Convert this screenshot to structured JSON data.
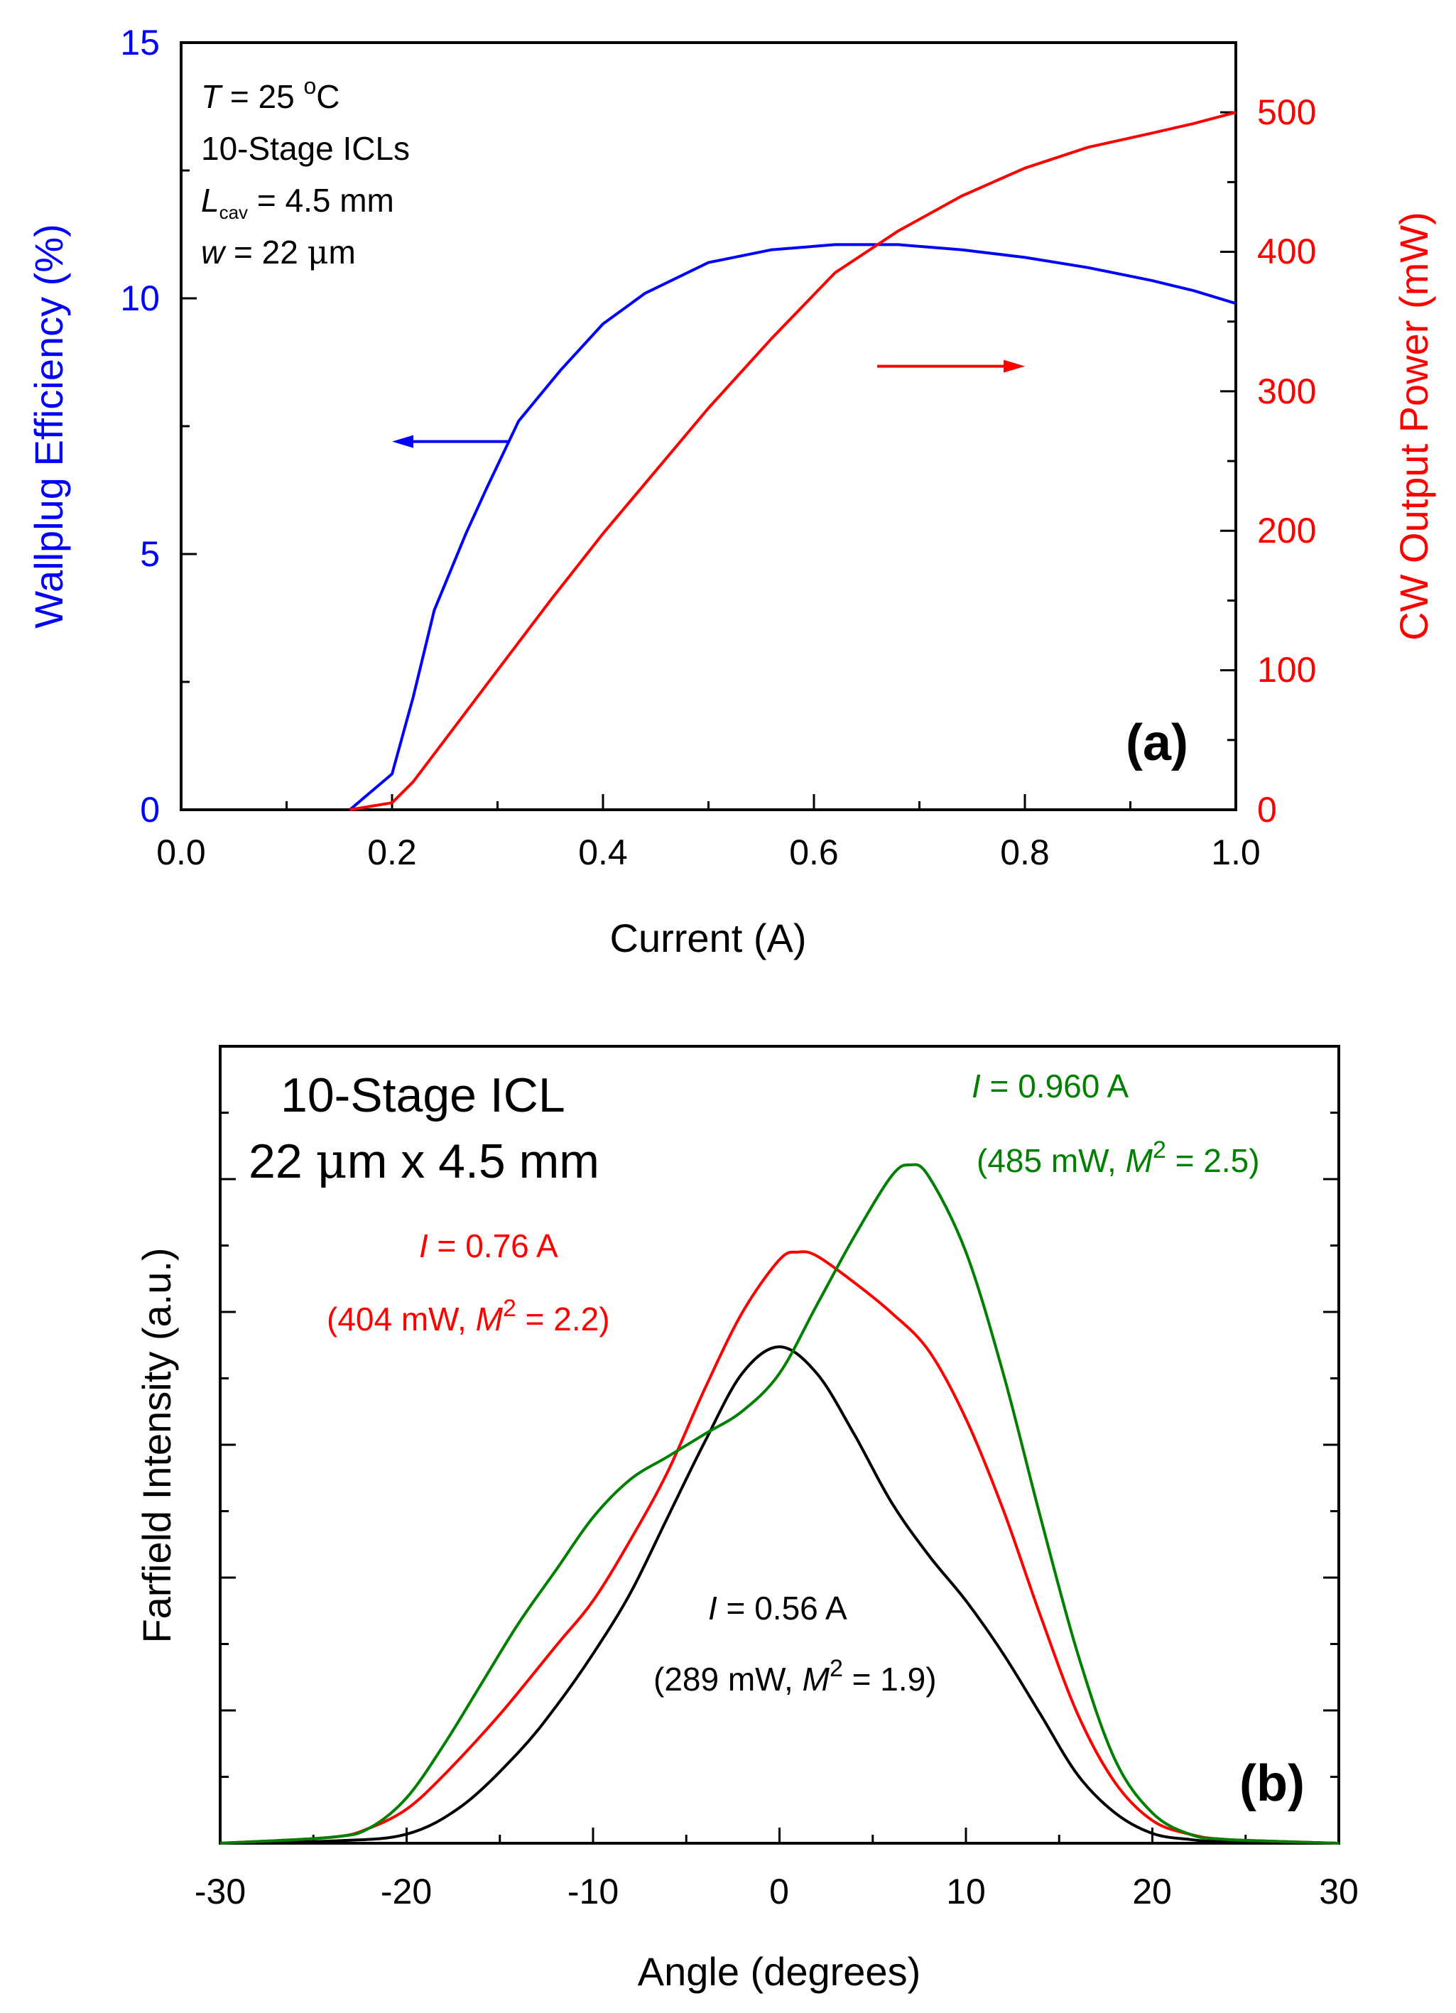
{
  "colors": {
    "blue": "#0000ff",
    "red": "#ff0000",
    "green": "#008000",
    "black": "#000000"
  },
  "chart_data": [
    {
      "panel": "(a)",
      "type": "line",
      "title": "",
      "xlabel": "Current (A)",
      "ylabel_left": "Wallplug Efficiency (%)",
      "ylabel_right": "CW Output Power (mW)",
      "xlim": [
        0,
        1.0
      ],
      "ylim_left": [
        0,
        15
      ],
      "ylim_right": [
        0,
        550
      ],
      "xticks": [
        "0.0",
        "0.2",
        "0.4",
        "0.6",
        "0.8",
        "1.0"
      ],
      "yticks_left": [
        "0",
        "5",
        "10",
        "15"
      ],
      "yticks_right": [
        "0",
        "100",
        "200",
        "300",
        "400",
        "500"
      ],
      "annotations": {
        "temp_T": "T",
        "temp_eq": " = 25 ",
        "temp_sup": "o",
        "temp_unit": "C",
        "stages": "10-Stage ICLs",
        "cav_L": "L",
        "cav_sub": "cav",
        "cav_val": " = 4.5 mm",
        "width_w": "w",
        "width_val": " = 22 ",
        "width_mu": "μ",
        "width_unit": "m",
        "panel_label": "(a)"
      },
      "series": [
        {
          "name": "Wallplug Efficiency",
          "axis": "left",
          "color": "#0000ff",
          "x": [
            0.16,
            0.2,
            0.22,
            0.24,
            0.27,
            0.29,
            0.32,
            0.36,
            0.4,
            0.44,
            0.5,
            0.56,
            0.62,
            0.68,
            0.74,
            0.8,
            0.86,
            0.92,
            0.96,
            1.0
          ],
          "y": [
            0,
            0.7,
            2.2,
            3.9,
            5.4,
            6.3,
            7.6,
            8.6,
            9.5,
            10.1,
            10.7,
            10.95,
            11.05,
            11.05,
            10.95,
            10.8,
            10.6,
            10.35,
            10.15,
            9.9
          ]
        },
        {
          "name": "CW Output Power",
          "axis": "right",
          "color": "#ff0000",
          "x": [
            0.16,
            0.2,
            0.22,
            0.26,
            0.3,
            0.35,
            0.4,
            0.45,
            0.5,
            0.56,
            0.62,
            0.68,
            0.74,
            0.8,
            0.86,
            0.92,
            0.96,
            1.0
          ],
          "y": [
            0,
            5,
            20,
            60,
            100,
            150,
            198,
            243,
            288,
            338,
            385,
            415,
            440,
            460,
            475,
            485,
            492,
            500
          ]
        }
      ],
      "arrows": [
        {
          "color": "#0000ff",
          "x_from": 0.31,
          "x_to": 0.2,
          "y": 7.2,
          "axis": "left"
        },
        {
          "color": "#ff0000",
          "x_from": 0.66,
          "x_to": 0.8,
          "y": 318,
          "axis": "right"
        }
      ]
    },
    {
      "panel": "(b)",
      "type": "line",
      "title": "",
      "xlabel": "Angle (degrees)",
      "ylabel": "Farfield Intensity (a.u.)",
      "xlim": [
        -30,
        30
      ],
      "ylim": [
        0,
        1.0
      ],
      "xticks": [
        "-30",
        "-20",
        "-10",
        "0",
        "10",
        "20",
        "30"
      ],
      "annotations": {
        "title_line1": "10-Stage ICL",
        "title_line2_a": "22 ",
        "title_line2_mu": "μ",
        "title_line2_b": "m x 4.5 mm",
        "panel_label": "(b)",
        "green_I": "I",
        "green_current": " = 0.960 A",
        "green_open": "(485 mW, ",
        "green_M": "M",
        "green_sup": "2",
        "green_close": " = 2.5)",
        "red_I": "I",
        "red_current": " = 0.76 A",
        "red_open": "(404 mW, ",
        "red_M": "M",
        "red_sup": "2",
        "red_close": " = 2.2)",
        "black_I": "I",
        "black_current": " = 0.56 A",
        "black_open": "(289 mW, ",
        "black_M": "M",
        "black_sup": "2",
        "black_close": " = 1.9)"
      },
      "series": [
        {
          "name": "I = 0.56 A",
          "color": "#000000",
          "x": [
            -30,
            -24,
            -20,
            -17,
            -14,
            -12,
            -10,
            -8,
            -6,
            -4,
            -2,
            0,
            2,
            4,
            6,
            8,
            10,
            12,
            14,
            16,
            18,
            20,
            22,
            24,
            30
          ],
          "y": [
            0,
            0.003,
            0.012,
            0.05,
            0.12,
            0.18,
            0.25,
            0.33,
            0.43,
            0.53,
            0.62,
            0.655,
            0.62,
            0.54,
            0.45,
            0.38,
            0.32,
            0.25,
            0.17,
            0.09,
            0.04,
            0.013,
            0.005,
            0.002,
            0
          ]
        },
        {
          "name": "I = 0.76 A",
          "color": "#ff0000",
          "x": [
            -30,
            -24,
            -22,
            -20,
            -18,
            -15,
            -12,
            -10,
            -8,
            -6,
            -4,
            -2,
            0,
            1,
            2,
            4,
            6,
            8,
            10,
            12,
            14,
            16,
            18,
            20,
            22,
            24,
            30
          ],
          "y": [
            0,
            0.008,
            0.02,
            0.045,
            0.09,
            0.17,
            0.26,
            0.32,
            0.4,
            0.49,
            0.6,
            0.7,
            0.77,
            0.78,
            0.775,
            0.74,
            0.7,
            0.65,
            0.56,
            0.44,
            0.3,
            0.17,
            0.08,
            0.03,
            0.012,
            0.005,
            0
          ]
        },
        {
          "name": "I = 0.960 A",
          "color": "#008000",
          "x": [
            -30,
            -24,
            -22,
            -20,
            -18,
            -16,
            -14,
            -12,
            -10,
            -8,
            -6,
            -4,
            -2,
            0,
            2,
            4,
            6,
            7,
            8,
            10,
            12,
            14,
            16,
            18,
            20,
            22,
            24,
            30
          ],
          "y": [
            0,
            0.008,
            0.02,
            0.06,
            0.13,
            0.21,
            0.29,
            0.36,
            0.43,
            0.48,
            0.51,
            0.54,
            0.57,
            0.62,
            0.71,
            0.8,
            0.88,
            0.895,
            0.88,
            0.78,
            0.62,
            0.43,
            0.25,
            0.11,
            0.04,
            0.012,
            0.005,
            0
          ]
        }
      ]
    }
  ]
}
